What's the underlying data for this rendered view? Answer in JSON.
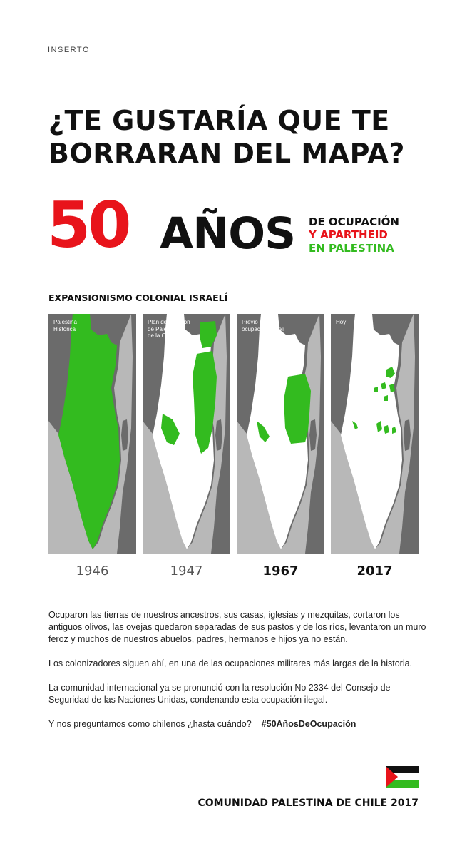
{
  "header": {
    "section_label": "INSERTO"
  },
  "headline": {
    "line1": "¿TE GUSTARÍA QUE TE",
    "line2": "BORRARAN DEL MAPA?"
  },
  "banner": {
    "number": "50",
    "word": "AÑOS",
    "line1": "DE OCUPACIÓN",
    "line2": "Y APARTHEID",
    "line3": "EN PALESTINA"
  },
  "maps": {
    "title": "EXPANSIONISMO COLONIAL ISRAELÍ",
    "panels": [
      {
        "caption": "Palestina\nHistórica",
        "year": "1946"
      },
      {
        "caption": "Plan de partición\nde Palestina\nde la ONU",
        "year": "1947"
      },
      {
        "caption": "Previo a la\nocupación israelí",
        "year": "1967"
      },
      {
        "caption": "Hoy",
        "year": "2017"
      }
    ]
  },
  "body": {
    "paragraph1": "Ocuparon las tierras de nuestros ancestros, sus casas, iglesias y mezquitas, cortaron los antiguos olivos, las ovejas quedaron separadas de sus pastos y de los ríos, levantaron un muro feroz y muchos de nuestros abuelos, padres, hermanos e hijos ya no están.",
    "paragraph2": "Los colonizadores siguen ahí, en una de las ocupaciones militares más largas de la historia.",
    "paragraph3": "La comunidad internacional ya se pronunció con la resolución No 2334 del Consejo de Seguridad de las Naciones Unidas, condenando esta ocupación ilegal.",
    "paragraph4": "Y nos preguntamos como chilenos ¿hasta cuándo?",
    "hashtag": "#50AñosDeOcupación"
  },
  "footer": {
    "signature": "COMUNIDAD PALESTINA DE CHILE 2017"
  },
  "colors": {
    "red": "#e8141b",
    "green": "#33bb1f",
    "black": "#111111",
    "land_dark": "#6b6b6b",
    "sea": "#b8b8b8",
    "israel": "#ffffff"
  },
  "icons": {
    "flag": "palestine-flag-icon"
  }
}
